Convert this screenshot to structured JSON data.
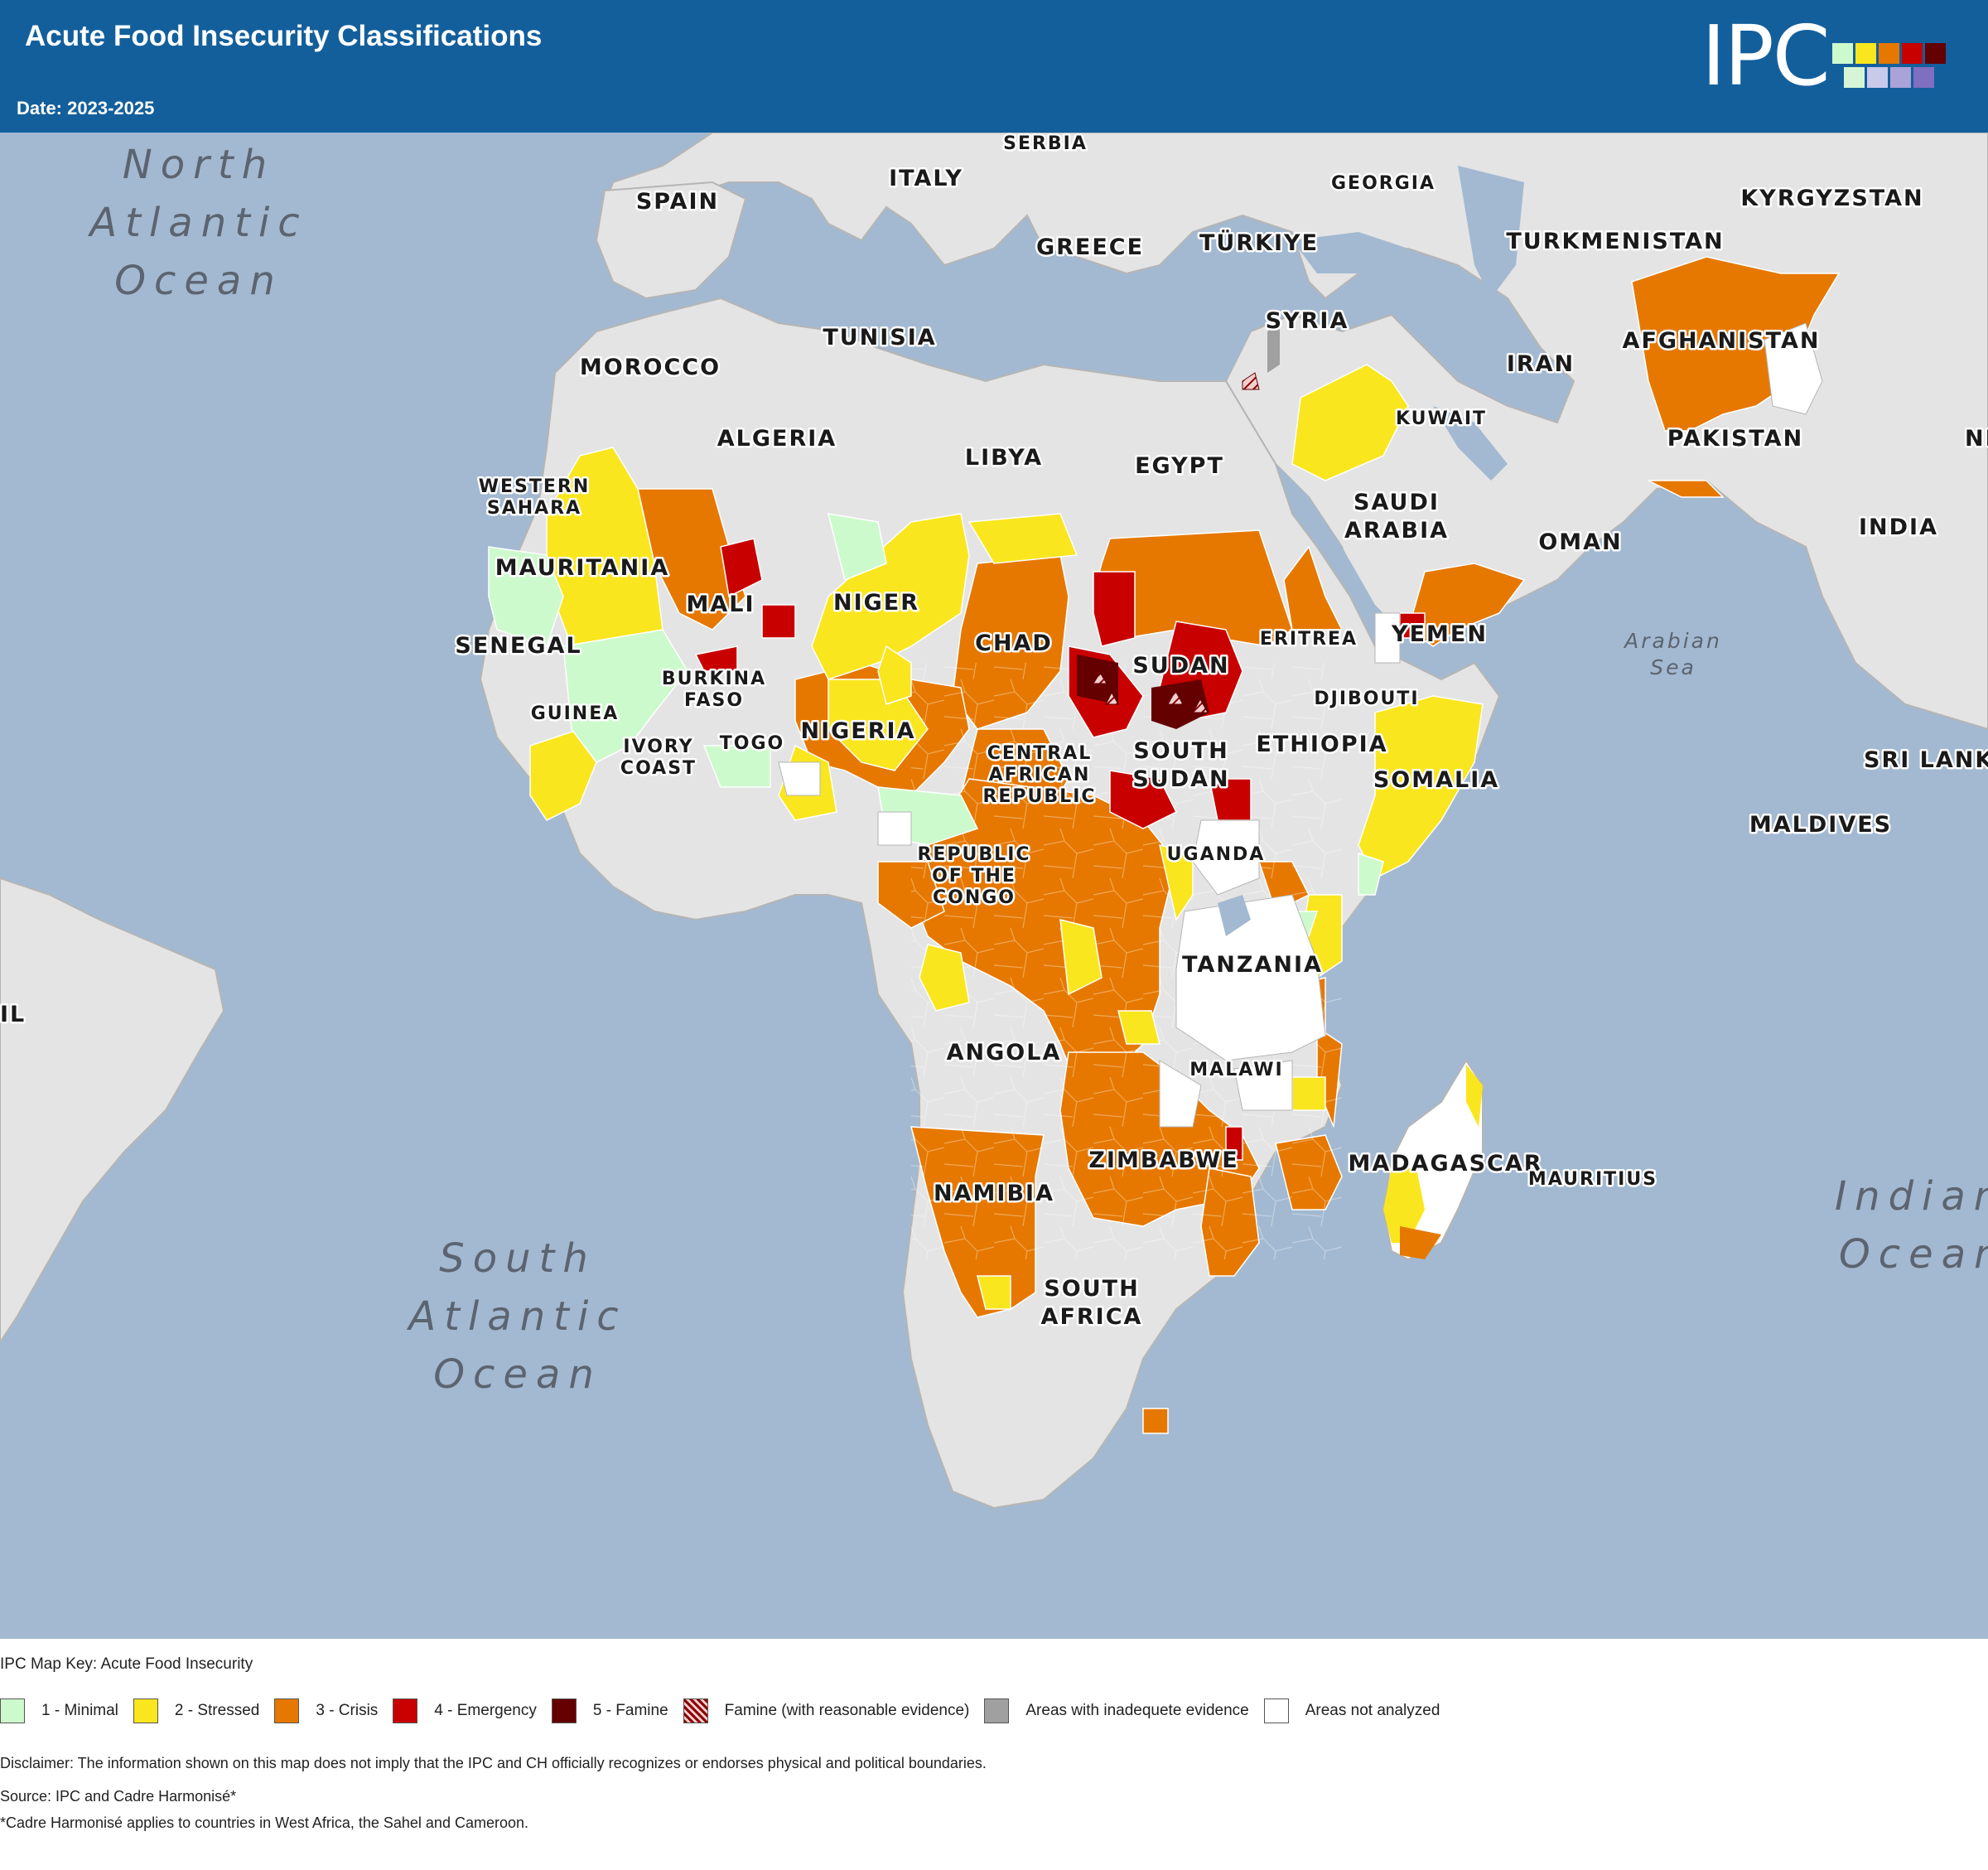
{
  "header": {
    "title": "Acute Food Insecurity Classifications",
    "date": "Date: 2023-2025",
    "logo": "IPC"
  },
  "colors": {
    "header_bg": "#135f9c",
    "water": "#a3b9d1",
    "land": "#e4e4e4",
    "phase1": "#cdfacd",
    "phase2": "#fae61e",
    "phase3": "#e67800",
    "phase4": "#c80000",
    "phase5": "#640000",
    "inadequate": "#a0a0a0",
    "not_analyzed": "#ffffff"
  },
  "map": {
    "oceans": [
      {
        "lines": [
          "North",
          "Atlantic",
          "Ocean"
        ]
      },
      {
        "lines": [
          "South",
          "Atlantic",
          "Ocean"
        ]
      },
      {
        "lines": [
          "Indian",
          "Ocean"
        ]
      }
    ],
    "seas": [
      {
        "lines": [
          "Arabian",
          "Sea"
        ]
      }
    ],
    "countries": [
      {
        "lines": [
          "SERBIA"
        ]
      },
      {
        "lines": [
          "ITALY"
        ]
      },
      {
        "lines": [
          "GEORGIA"
        ]
      },
      {
        "lines": [
          "KYRGYZSTAN"
        ]
      },
      {
        "lines": [
          "SPAIN"
        ]
      },
      {
        "lines": [
          "GREECE"
        ]
      },
      {
        "lines": [
          "TÜRKIYE"
        ]
      },
      {
        "lines": [
          "TURKMENISTAN"
        ]
      },
      {
        "lines": [
          "SYRIA"
        ]
      },
      {
        "lines": [
          "TUNISIA"
        ]
      },
      {
        "lines": [
          "MOROCCO"
        ]
      },
      {
        "lines": [
          "AFGHANISTAN"
        ]
      },
      {
        "lines": [
          "IRAN"
        ]
      },
      {
        "lines": [
          "ALGERIA"
        ]
      },
      {
        "lines": [
          "LIBYA"
        ]
      },
      {
        "lines": [
          "EGYPT"
        ]
      },
      {
        "lines": [
          "KUWAIT"
        ]
      },
      {
        "lines": [
          "PAKISTAN"
        ]
      },
      {
        "lines": [
          "NEP"
        ]
      },
      {
        "lines": [
          "WESTERN",
          "SAHARA"
        ]
      },
      {
        "lines": [
          "SAUDI",
          "ARABIA"
        ]
      },
      {
        "lines": [
          "INDIA"
        ]
      },
      {
        "lines": [
          "OMAN"
        ]
      },
      {
        "lines": [
          "MAURITANIA"
        ]
      },
      {
        "lines": [
          "MALI"
        ]
      },
      {
        "lines": [
          "NIGER"
        ]
      },
      {
        "lines": [
          "ERITREA"
        ]
      },
      {
        "lines": [
          "YEMEN"
        ]
      },
      {
        "lines": [
          "SENEGAL"
        ]
      },
      {
        "lines": [
          "CHAD"
        ]
      },
      {
        "lines": [
          "SUDAN"
        ]
      },
      {
        "lines": [
          "BURKINA",
          "FASO"
        ]
      },
      {
        "lines": [
          "DJIBOUTI"
        ]
      },
      {
        "lines": [
          "GUINEA"
        ]
      },
      {
        "lines": [
          "NIGERIA"
        ]
      },
      {
        "lines": [
          "IVORY",
          "COAST"
        ]
      },
      {
        "lines": [
          "TOGO"
        ]
      },
      {
        "lines": [
          "ETHIOPIA"
        ]
      },
      {
        "lines": [
          "SOUTH",
          "SUDAN"
        ]
      },
      {
        "lines": [
          "CENTRAL",
          "AFRICAN",
          "REPUBLIC"
        ]
      },
      {
        "lines": [
          "SRI LANKA"
        ]
      },
      {
        "lines": [
          "SOMALIA"
        ]
      },
      {
        "lines": [
          "MALDIVES"
        ]
      },
      {
        "lines": [
          "UGANDA"
        ]
      },
      {
        "lines": [
          "REPUBLIC",
          "OF THE",
          "CONGO"
        ]
      },
      {
        "lines": [
          "TANZANIA"
        ]
      },
      {
        "lines": [
          "IL"
        ]
      },
      {
        "lines": [
          "ANGOLA"
        ]
      },
      {
        "lines": [
          "MALAWI"
        ]
      },
      {
        "lines": [
          "ZIMBABWE"
        ]
      },
      {
        "lines": [
          "MADAGASCAR"
        ]
      },
      {
        "lines": [
          "MAURITIUS"
        ]
      },
      {
        "lines": [
          "NAMIBIA"
        ]
      },
      {
        "lines": [
          "SOUTH",
          "AFRICA"
        ]
      }
    ]
  },
  "legend": {
    "title": "IPC Map Key: Acute Food Insecurity",
    "items": [
      {
        "label": "1 - Minimal",
        "color": "#cdfacd"
      },
      {
        "label": "2 - Stressed",
        "color": "#fae61e"
      },
      {
        "label": "3 - Crisis",
        "color": "#e67800"
      },
      {
        "label": "4 - Emergency",
        "color": "#c80000"
      },
      {
        "label": "5 - Famine",
        "color": "#640000"
      },
      {
        "label": "Famine (with reasonable evidence)",
        "color": "hatched"
      },
      {
        "label": "Areas with inadequete evidence",
        "color": "#a0a0a0"
      },
      {
        "label": "Areas not analyzed",
        "color": "#ffffff"
      }
    ]
  },
  "footer": {
    "disclaimer": "Disclaimer: The information shown on this map does not imply that the IPC and CH officially recognizes or endorses physical and political boundaries.",
    "source": "Source: IPC and Cadre Harmonisé*",
    "note": "*Cadre Harmonisé applies to countries in West Africa, the Sahel and Cameroon."
  }
}
